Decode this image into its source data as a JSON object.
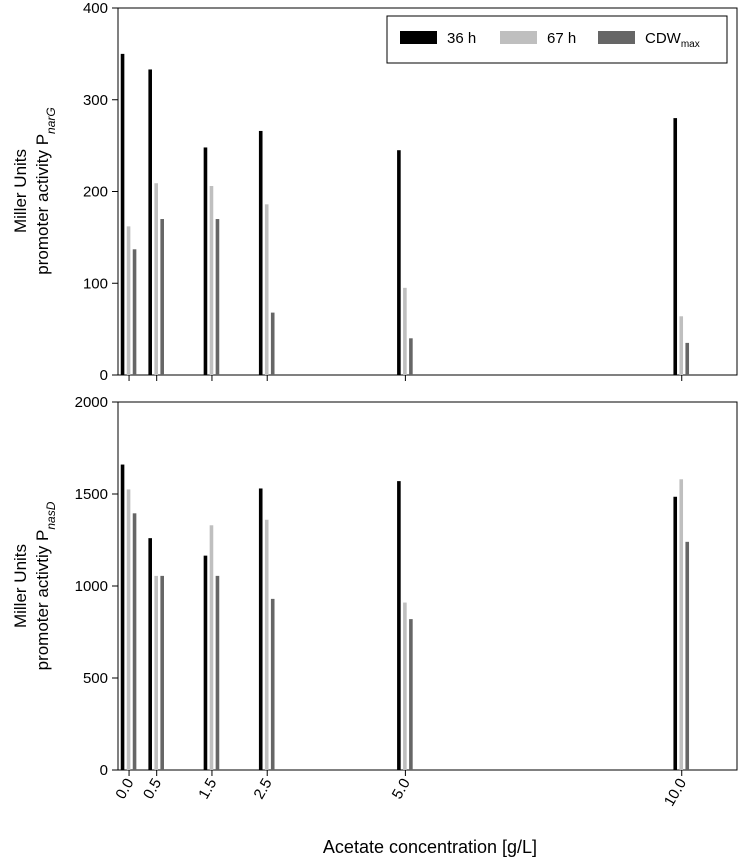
{
  "chart_data": [
    {
      "type": "bar",
      "title": "",
      "xlabel": "",
      "ylabel_lines": [
        "Miller Units",
        "promoter activity P"
      ],
      "ylabel_subscript": "narG",
      "x": [
        0.0,
        0.5,
        1.5,
        2.5,
        5.0,
        10.0
      ],
      "xlim": [
        -0.2,
        11.0
      ],
      "ylim": [
        0,
        400
      ],
      "yticks": [
        "0",
        "100",
        "200",
        "300",
        "400"
      ],
      "ytick_values": [
        0,
        100,
        200,
        300,
        400
      ],
      "series": [
        {
          "name": "36 h",
          "color": "#000000",
          "values": [
            350,
            333,
            248,
            266,
            245,
            280
          ]
        },
        {
          "name": "67 h",
          "color": "#bfbfbf",
          "values": [
            162,
            209,
            206,
            186,
            95,
            64
          ]
        },
        {
          "name": "CDW_max",
          "color": "#666666",
          "values": [
            137,
            170,
            170,
            68,
            40,
            35
          ]
        }
      ],
      "legend": {
        "position": "top-right",
        "labels": [
          "36 h",
          "67 h",
          "CDW"
        ],
        "cdw_subscript": "max"
      },
      "grid": false
    },
    {
      "type": "bar",
      "title": "",
      "xlabel": "Acetate concentration [g/L]",
      "ylabel_lines": [
        "Miller Units",
        "promoter activtiy P"
      ],
      "ylabel_subscript": "nasD",
      "x": [
        0.0,
        0.5,
        1.5,
        2.5,
        5.0,
        10.0
      ],
      "xticks": [
        "0.0",
        "0.5",
        "1.5",
        "2.5",
        "5.0",
        "10.0"
      ],
      "xlim": [
        -0.2,
        11.0
      ],
      "ylim": [
        0,
        2000
      ],
      "yticks": [
        "0",
        "500",
        "1000",
        "1500",
        "2000"
      ],
      "ytick_values": [
        0,
        500,
        1000,
        1500,
        2000
      ],
      "series": [
        {
          "name": "36 h",
          "color": "#000000",
          "values": [
            1660,
            1260,
            1165,
            1530,
            1570,
            1485
          ]
        },
        {
          "name": "67 h",
          "color": "#bfbfbf",
          "values": [
            1525,
            1055,
            1330,
            1360,
            910,
            1580
          ]
        },
        {
          "name": "CDW_max",
          "color": "#666666",
          "values": [
            1395,
            1055,
            1055,
            930,
            820,
            1240
          ]
        }
      ],
      "grid": false
    }
  ]
}
